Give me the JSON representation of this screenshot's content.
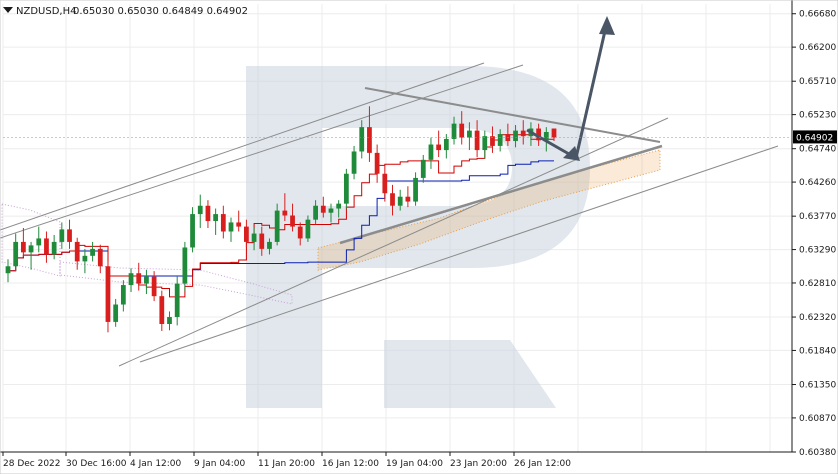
{
  "header": {
    "symbol": "NZDUSD,H4",
    "values": "0.65030 0.65030 0.64849 0.64902"
  },
  "colors": {
    "background": "#ffffff",
    "grid": "#ececec",
    "bull_candle": "#1f8a3a",
    "bear_candle": "#d91e1e",
    "tenkan": "#d00000",
    "kijun": "#0a1fb0",
    "cloud": "#e8a04a",
    "cloud_bear": "#c8a0d8",
    "trend_lines": "#8c8c8c",
    "forecast_arrow": "#4a5666",
    "watermark": "#c9d3de",
    "price_badge": "#000000"
  },
  "chart_data": {
    "type": "candlestick",
    "symbol": "NZDUSD",
    "timeframe": "H4",
    "ohlc_header": {
      "open": 0.6503,
      "high": 0.6503,
      "low": 0.64849,
      "close": 0.64902
    },
    "current_price": "0.64902",
    "y_range": [
      0.6038,
      0.6682
    ],
    "y_ticks": [
      "0.66680",
      "0.66200",
      "0.65710",
      "0.65230",
      "0.64740",
      "0.64260",
      "0.63770",
      "0.63290",
      "0.62810",
      "0.62320",
      "0.61840",
      "0.61350",
      "0.60870",
      "0.60380"
    ],
    "x_ticks": [
      "28 Dec 2022",
      "30 Dec 16:00",
      "4 Jan 12:00",
      "9 Jan 04:00",
      "11 Jan 20:00",
      "16 Jan 12:00",
      "19 Jan 04:00",
      "23 Jan 20:00",
      "26 Jan 12:00"
    ],
    "grid": true,
    "indicators": [
      "Ichimoku Kinko Hyo"
    ],
    "candles": [
      [
        0.6295,
        0.6315,
        0.6282,
        0.6305
      ],
      [
        0.6305,
        0.6352,
        0.6298,
        0.634
      ],
      [
        0.634,
        0.636,
        0.6318,
        0.6325
      ],
      [
        0.6325,
        0.634,
        0.63,
        0.6335
      ],
      [
        0.6335,
        0.6362,
        0.6325,
        0.6345
      ],
      [
        0.6345,
        0.6355,
        0.631,
        0.6322
      ],
      [
        0.6322,
        0.635,
        0.6315,
        0.634
      ],
      [
        0.634,
        0.6368,
        0.633,
        0.6358
      ],
      [
        0.6358,
        0.6372,
        0.633,
        0.634
      ],
      [
        0.634,
        0.6346,
        0.63,
        0.6312
      ],
      [
        0.6312,
        0.633,
        0.6295,
        0.632
      ],
      [
        0.632,
        0.634,
        0.6312,
        0.633
      ],
      [
        0.633,
        0.6336,
        0.6295,
        0.6305
      ],
      [
        0.6305,
        0.6312,
        0.621,
        0.6225
      ],
      [
        0.6225,
        0.6258,
        0.6218,
        0.625
      ],
      [
        0.625,
        0.6285,
        0.624,
        0.6278
      ],
      [
        0.6278,
        0.6302,
        0.6268,
        0.6295
      ],
      [
        0.6295,
        0.631,
        0.627,
        0.628
      ],
      [
        0.628,
        0.63,
        0.6265,
        0.629
      ],
      [
        0.629,
        0.6298,
        0.6255,
        0.6262
      ],
      [
        0.6262,
        0.627,
        0.6212,
        0.6222
      ],
      [
        0.6222,
        0.624,
        0.6213,
        0.6232
      ],
      [
        0.6232,
        0.629,
        0.622,
        0.628
      ],
      [
        0.628,
        0.634,
        0.627,
        0.6332
      ],
      [
        0.6332,
        0.639,
        0.6325,
        0.638
      ],
      [
        0.638,
        0.6408,
        0.636,
        0.6392
      ],
      [
        0.6392,
        0.64,
        0.636,
        0.637
      ],
      [
        0.637,
        0.6388,
        0.635,
        0.638
      ],
      [
        0.638,
        0.6392,
        0.6345,
        0.6355
      ],
      [
        0.6355,
        0.6375,
        0.634,
        0.6368
      ],
      [
        0.6368,
        0.6385,
        0.6355,
        0.6362
      ],
      [
        0.6362,
        0.6372,
        0.6332,
        0.634
      ],
      [
        0.634,
        0.636,
        0.6328,
        0.6352
      ],
      [
        0.6352,
        0.6362,
        0.632,
        0.633
      ],
      [
        0.633,
        0.6345,
        0.6322,
        0.634
      ],
      [
        0.634,
        0.6395,
        0.6335,
        0.6385
      ],
      [
        0.6385,
        0.641,
        0.637,
        0.6378
      ],
      [
        0.6378,
        0.6395,
        0.6355,
        0.6362
      ],
      [
        0.6362,
        0.6368,
        0.6335,
        0.6345
      ],
      [
        0.6345,
        0.6378,
        0.634,
        0.6372
      ],
      [
        0.6372,
        0.64,
        0.6365,
        0.6392
      ],
      [
        0.6392,
        0.6405,
        0.6375,
        0.6382
      ],
      [
        0.6382,
        0.6395,
        0.6368,
        0.6388
      ],
      [
        0.6388,
        0.64,
        0.6375,
        0.6395
      ],
      [
        0.6395,
        0.6445,
        0.6388,
        0.6438
      ],
      [
        0.6438,
        0.6478,
        0.643,
        0.647
      ],
      [
        0.647,
        0.6515,
        0.646,
        0.6505
      ],
      [
        0.6505,
        0.6535,
        0.6455,
        0.6468
      ],
      [
        0.6468,
        0.648,
        0.6425,
        0.6438
      ],
      [
        0.6438,
        0.645,
        0.6398,
        0.641
      ],
      [
        0.641,
        0.6422,
        0.6378,
        0.6392
      ],
      [
        0.6392,
        0.6415,
        0.6385,
        0.6405
      ],
      [
        0.6405,
        0.642,
        0.639,
        0.6398
      ],
      [
        0.6398,
        0.644,
        0.6392,
        0.6432
      ],
      [
        0.6432,
        0.6465,
        0.6425,
        0.6458
      ],
      [
        0.6458,
        0.649,
        0.6445,
        0.648
      ],
      [
        0.648,
        0.65,
        0.6462,
        0.6472
      ],
      [
        0.6472,
        0.6495,
        0.646,
        0.6488
      ],
      [
        0.6488,
        0.652,
        0.648,
        0.651
      ],
      [
        0.651,
        0.6528,
        0.648,
        0.649
      ],
      [
        0.649,
        0.6512,
        0.6472,
        0.65
      ],
      [
        0.65,
        0.6515,
        0.6462,
        0.6472
      ],
      [
        0.6472,
        0.65,
        0.646,
        0.6492
      ],
      [
        0.6492,
        0.6506,
        0.6468,
        0.6478
      ],
      [
        0.6478,
        0.6502,
        0.647,
        0.6495
      ],
      [
        0.6495,
        0.651,
        0.6478,
        0.6485
      ],
      [
        0.6485,
        0.6508,
        0.6476,
        0.65
      ],
      [
        0.65,
        0.6515,
        0.648,
        0.6492
      ],
      [
        0.6492,
        0.6512,
        0.6478,
        0.6503
      ],
      [
        0.6503,
        0.651,
        0.6478,
        0.6486
      ],
      [
        0.6486,
        0.6505,
        0.647,
        0.6498
      ],
      [
        0.6503,
        0.6503,
        0.6485,
        0.649
      ]
    ]
  }
}
